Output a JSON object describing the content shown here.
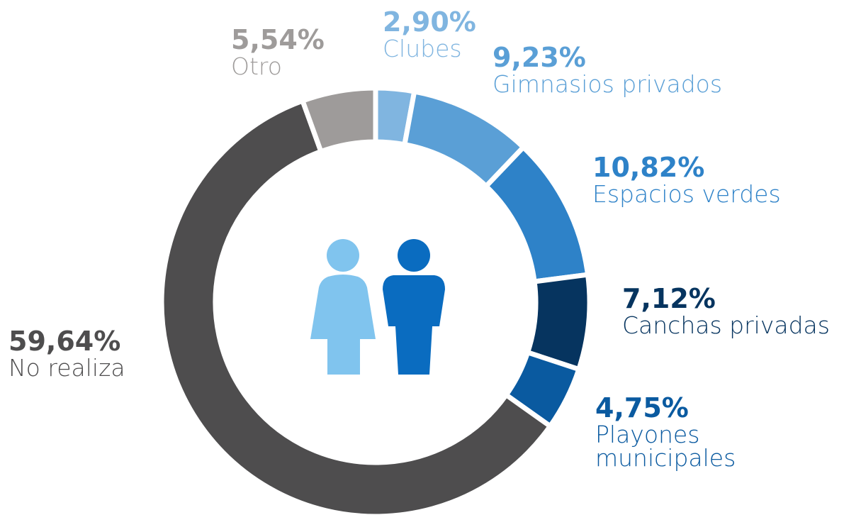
{
  "chart_data": {
    "type": "donut",
    "categories": [
      "Clubes",
      "Gimnasios privados",
      "Espacios verdes",
      "Canchas privadas",
      "Playones municipales",
      "No realiza",
      "Otro"
    ],
    "values": [
      2.9,
      9.23,
      10.82,
      7.12,
      4.75,
      59.64,
      5.54
    ],
    "value_labels": [
      "2,90%",
      "9,23%",
      "10,82%",
      "7,12%",
      "4,75%",
      "59,64%",
      "5,54%"
    ],
    "colors": [
      "#80b5e0",
      "#5a9fd6",
      "#2e82c8",
      "#06345f",
      "#0a5aa0",
      "#4e4d4e",
      "#9e9b9a"
    ]
  }
}
